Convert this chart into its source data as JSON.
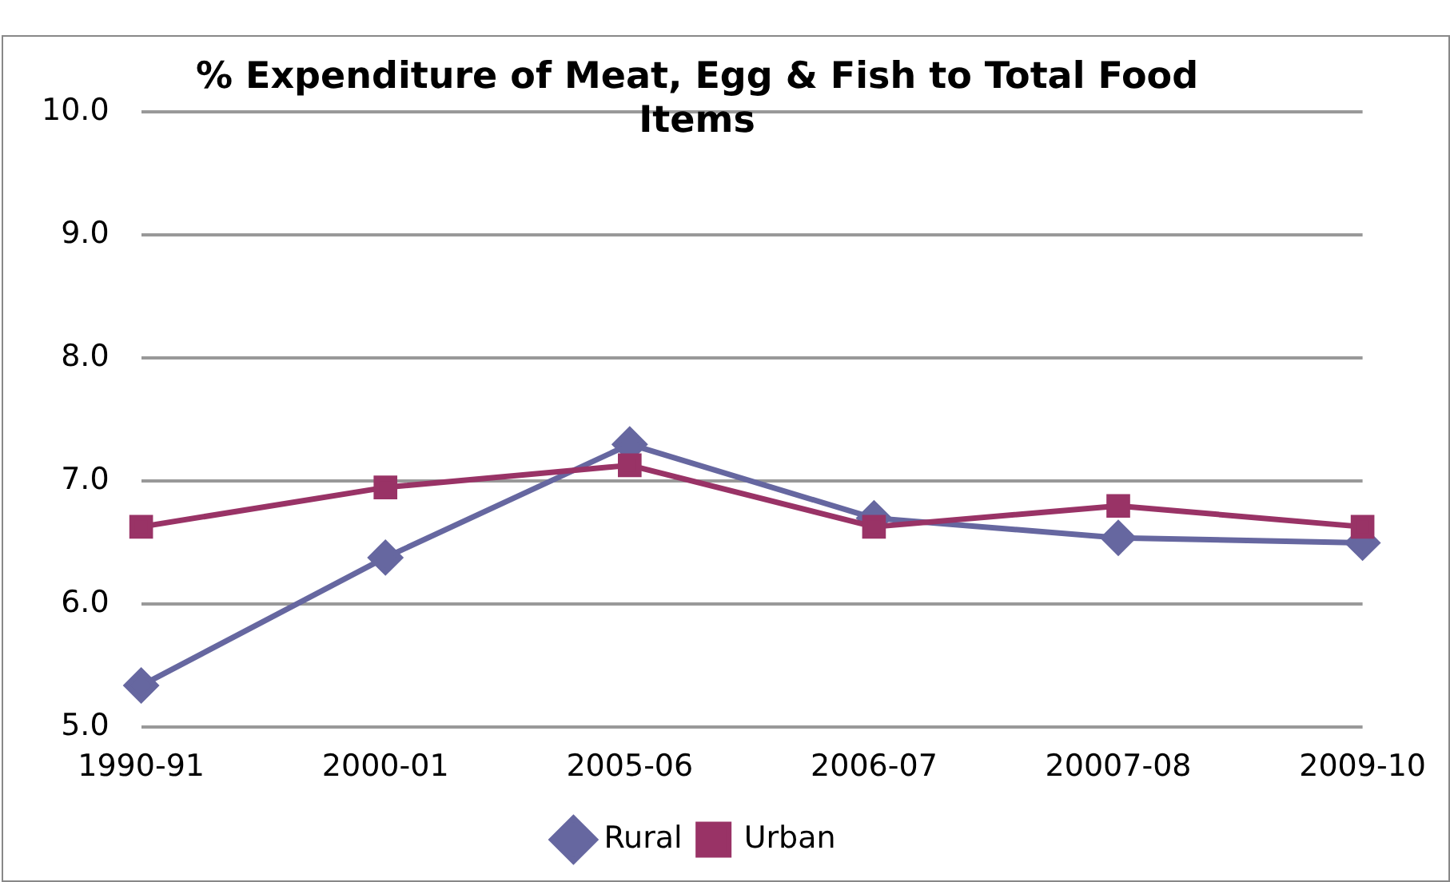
{
  "chart_data": {
    "type": "line",
    "title": "% Expenditure of Meat, Egg & Fish to Total Food Items",
    "categories": [
      "1990-91",
      "2000-01",
      "2005-06",
      "2006-07",
      "20007-08",
      "2009-10"
    ],
    "series": [
      {
        "name": "Rural",
        "color": "#6667a0",
        "marker": "diamond",
        "values": [
          5.34,
          6.38,
          7.3,
          6.7,
          6.54,
          6.5
        ]
      },
      {
        "name": "Urban",
        "color": "#993366",
        "marker": "square",
        "values": [
          6.63,
          6.95,
          7.13,
          6.63,
          6.8,
          6.63
        ]
      }
    ],
    "ylim": [
      5,
      10
    ],
    "yticks": [
      {
        "value": 5,
        "label": "5.0"
      },
      {
        "value": 6,
        "label": "6.0"
      },
      {
        "value": 7,
        "label": "7.0"
      },
      {
        "value": 8,
        "label": "8.0"
      },
      {
        "value": 9,
        "label": "9.0"
      },
      {
        "value": 10,
        "label": "10.0"
      }
    ],
    "grid": "y",
    "legend": "bottom"
  }
}
